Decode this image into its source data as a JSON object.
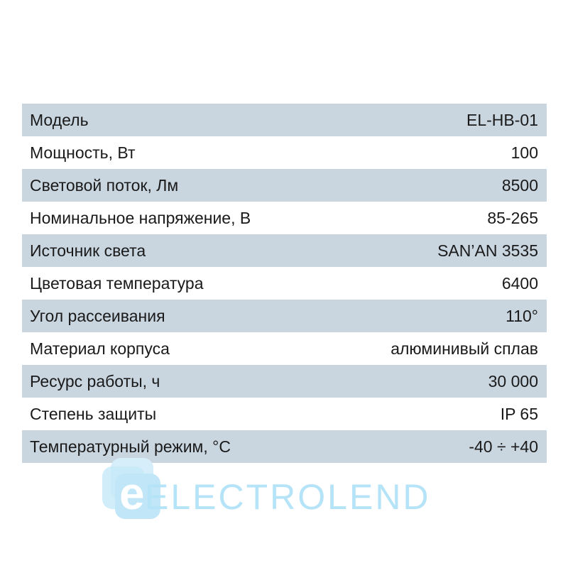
{
  "specs": [
    {
      "label": "Модель",
      "value": "EL-HB-01"
    },
    {
      "label": "Мощность, Вт",
      "value": "100"
    },
    {
      "label": "Световой поток, Лм",
      "value": "8500"
    },
    {
      "label": "Номинальное напряжение, В",
      "value": "85-265"
    },
    {
      "label": "Источник света",
      "value": "SAN’AN 3535"
    },
    {
      "label": "Цветовая температура",
      "value": "6400"
    },
    {
      "label": "Угол рассеивания",
      "value": "110°"
    },
    {
      "label": "Материал корпуса",
      "value": "алюминивый сплав"
    },
    {
      "label": "Ресурс работы, ч",
      "value": "30 000"
    },
    {
      "label": "Степень защиты",
      "value": "IP 65"
    },
    {
      "label": "Температурный режим, °C",
      "value": "-40 ÷ +40"
    }
  ],
  "logo": {
    "letter": "e",
    "text": "ELECTROLEND"
  },
  "colors": {
    "shaded_row": "#c9d6e0",
    "logo": "#b5e3f7"
  }
}
